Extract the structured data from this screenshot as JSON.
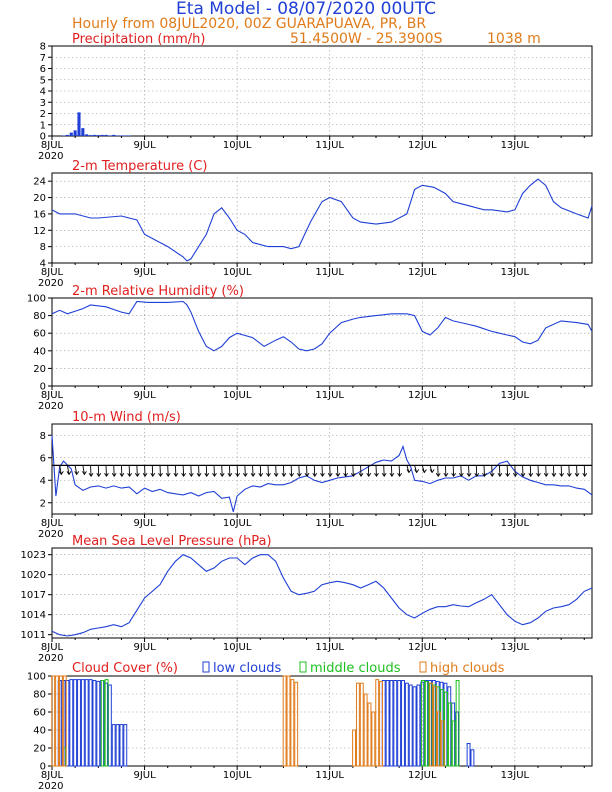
{
  "header": {
    "title": "Eta Model - 08/07/2020 00UTC",
    "line2": "Hourly from 08JUL2020, 00Z  GUARAPUAVA, PR, BR",
    "coords": "51.4500W - 25.3900S",
    "elevation": "1038  m"
  },
  "colors": {
    "title": "#1f3fd6",
    "subtitle": "#e07b1a",
    "panel_title": "#e02020",
    "line": "#1f3fd6",
    "arrows": "#000000",
    "low_clouds": "#1f3fd6",
    "middle_clouds": "#1fbf1f",
    "high_clouds": "#e07b1a",
    "grid": "#9a9a9a"
  },
  "x_axis": {
    "tick_labels": [
      "8JUL",
      "9JUL",
      "10JUL",
      "11JUL",
      "12JUL",
      "13JUL"
    ],
    "year_label": "2020"
  },
  "chart_data": [
    {
      "type": "bar",
      "title": "Precipitation (mm/h)",
      "x_unit": "hours from 08JUL2020 00Z",
      "ylim": [
        0,
        8
      ],
      "yticks": [
        0,
        1,
        2,
        3,
        4,
        5,
        6,
        7,
        8
      ],
      "x": [
        3,
        4,
        5,
        6,
        7,
        8,
        9,
        10,
        11,
        12,
        13,
        14,
        15,
        16,
        17,
        18,
        19,
        20
      ],
      "values": [
        0.05,
        0.1,
        0.3,
        0.5,
        2.1,
        0.7,
        0.15,
        0.08,
        0.1,
        0.08,
        0.1,
        0.1,
        0.05,
        0.1,
        0.05,
        0.05,
        0.05,
        0.05
      ]
    },
    {
      "type": "line",
      "title": "2-m Temperature (C)",
      "x_unit": "hours from 08JUL2020 00Z",
      "ylim": [
        4,
        26
      ],
      "yticks": [
        4,
        8,
        12,
        16,
        20,
        24
      ],
      "x": [
        0,
        2,
        6,
        10,
        12,
        18,
        20,
        22,
        24,
        30,
        34,
        35,
        36,
        40,
        42,
        44,
        46,
        48,
        50,
        52,
        56,
        60,
        62,
        64,
        67,
        70,
        72,
        75,
        78,
        80,
        84,
        88,
        92,
        94,
        96,
        99,
        102,
        104,
        106,
        108,
        112,
        114,
        118,
        120,
        122,
        124,
        126,
        128,
        130,
        132,
        136,
        139,
        140
      ],
      "values": [
        17,
        16,
        16,
        15,
        15,
        15.5,
        15,
        14.5,
        11,
        8,
        5.5,
        4.5,
        5,
        11,
        16,
        17.5,
        15,
        12,
        11,
        9,
        8,
        8,
        7.5,
        8,
        14,
        19,
        20,
        19,
        15,
        14,
        13.5,
        14,
        16,
        22,
        23,
        22.5,
        21,
        19,
        18.5,
        18,
        17,
        17,
        16.5,
        17,
        21,
        23,
        24.5,
        23,
        19,
        17.5,
        16,
        15,
        18
      ]
    },
    {
      "type": "line",
      "title": "2-m Relative Humidity (%)",
      "x_unit": "hours from 08JUL2020 00Z",
      "ylim": [
        0,
        100
      ],
      "yticks": [
        0,
        20,
        40,
        60,
        80,
        100
      ],
      "x": [
        0,
        2,
        4,
        8,
        10,
        14,
        18,
        20,
        22,
        25,
        30,
        34,
        35,
        36,
        38,
        40,
        42,
        44,
        46,
        48,
        52,
        55,
        58,
        60,
        62,
        64,
        66,
        68,
        70,
        72,
        75,
        78,
        80,
        84,
        88,
        92,
        94,
        96,
        98,
        100,
        102,
        104,
        106,
        108,
        110,
        112,
        114,
        116,
        118,
        120,
        122,
        124,
        126,
        128,
        132,
        136,
        139,
        140
      ],
      "values": [
        82,
        86,
        82,
        88,
        92,
        90,
        84,
        82,
        96,
        95,
        95,
        96,
        92,
        84,
        62,
        45,
        40,
        45,
        55,
        60,
        55,
        45,
        52,
        56,
        50,
        42,
        40,
        42,
        48,
        60,
        72,
        76,
        78,
        80,
        82,
        82,
        80,
        62,
        58,
        66,
        78,
        74,
        72,
        70,
        68,
        65,
        62,
        60,
        58,
        56,
        50,
        48,
        52,
        66,
        74,
        72,
        70,
        62
      ]
    },
    {
      "type": "line",
      "title": "10-m Wind (m/s)",
      "x_unit": "hours from 08JUL2020 00Z",
      "ylim": [
        1,
        9
      ],
      "yticks": [
        2,
        4,
        6,
        8
      ],
      "x": [
        0,
        1,
        2,
        3,
        5,
        6,
        8,
        10,
        12,
        14,
        16,
        18,
        20,
        22,
        24,
        26,
        28,
        30,
        32,
        34,
        36,
        38,
        40,
        42,
        44,
        46,
        47,
        48,
        50,
        52,
        54,
        56,
        58,
        60,
        62,
        64,
        66,
        68,
        70,
        72,
        74,
        76,
        78,
        80,
        82,
        84,
        86,
        88,
        90,
        91,
        92,
        93,
        94,
        96,
        98,
        100,
        102,
        104,
        106,
        108,
        110,
        112,
        114,
        116,
        118,
        120,
        122,
        124,
        126,
        128,
        130,
        132,
        134,
        136,
        138,
        140
      ],
      "values": [
        8,
        2.6,
        5.2,
        5.7,
        5,
        3.6,
        3.1,
        3.4,
        3.5,
        3.3,
        3.5,
        3.3,
        3.4,
        2.8,
        3.3,
        3.0,
        3.2,
        2.9,
        2.8,
        2.7,
        2.9,
        2.6,
        2.9,
        3.0,
        2.4,
        2.5,
        1.2,
        2.6,
        3.2,
        3.5,
        3.4,
        3.7,
        3.6,
        3.6,
        3.8,
        4.2,
        4.4,
        4.0,
        3.8,
        4.0,
        4.2,
        4.3,
        4.4,
        4.8,
        5.2,
        5.6,
        5.8,
        5.7,
        6.2,
        7.0,
        5.8,
        5.2,
        4.0,
        3.9,
        3.7,
        4.0,
        4.2,
        4.2,
        4.4,
        4.0,
        4.4,
        4.4,
        4.8,
        5.5,
        5.7,
        4.8,
        4.3,
        4.0,
        3.8,
        3.6,
        3.6,
        3.5,
        3.5,
        3.3,
        3.2,
        2.7
      ]
    },
    {
      "type": "line",
      "title": "Mean Sea Level Pressure (hPa)",
      "x_unit": "hours from 08JUL2020 00Z",
      "ylim": [
        1010.5,
        1024
      ],
      "yticks": [
        1011,
        1014,
        1017,
        1020,
        1023
      ],
      "x": [
        0,
        2,
        4,
        6,
        8,
        10,
        12,
        14,
        16,
        18,
        20,
        24,
        28,
        30,
        32,
        34,
        36,
        38,
        40,
        42,
        44,
        46,
        48,
        50,
        52,
        54,
        56,
        58,
        60,
        62,
        64,
        66,
        68,
        70,
        72,
        74,
        76,
        78,
        80,
        82,
        84,
        86,
        88,
        90,
        92,
        94,
        96,
        98,
        100,
        102,
        104,
        106,
        108,
        110,
        112,
        114,
        116,
        118,
        120,
        122,
        124,
        126,
        128,
        130,
        132,
        134,
        136,
        138,
        140
      ],
      "values": [
        1011.5,
        1011,
        1010.8,
        1011,
        1011.3,
        1011.8,
        1012,
        1012.2,
        1012.5,
        1012.2,
        1012.8,
        1016.5,
        1018.5,
        1020.5,
        1022,
        1023,
        1022.5,
        1021.5,
        1020.5,
        1021,
        1022,
        1022.5,
        1022.5,
        1021.5,
        1022.5,
        1023,
        1023,
        1022,
        1019.5,
        1017.5,
        1017,
        1017.2,
        1017.5,
        1018.5,
        1018.8,
        1019,
        1018.8,
        1018.5,
        1018,
        1018.5,
        1019,
        1018,
        1016.5,
        1015,
        1014,
        1013.5,
        1014.2,
        1014.8,
        1015.2,
        1015.2,
        1015.5,
        1015.3,
        1015.2,
        1015.8,
        1016.3,
        1017,
        1015.5,
        1014,
        1013,
        1012.5,
        1012.8,
        1013.5,
        1014.5,
        1015,
        1015.2,
        1015.5,
        1016.3,
        1017.5,
        1018
      ]
    },
    {
      "type": "bar",
      "title": "Cloud Cover (%)",
      "x_unit": "hours from 08JUL2020 00Z",
      "ylim": [
        0,
        100
      ],
      "yticks": [
        0,
        20,
        40,
        60,
        80,
        100
      ],
      "legend": [
        "low clouds",
        "middle clouds",
        "high clouds"
      ],
      "series": [
        {
          "name": "low clouds",
          "x": [
            2,
            3,
            4,
            5,
            6,
            7,
            8,
            9,
            10,
            11,
            12,
            13,
            14,
            15,
            16,
            17,
            18,
            19,
            86,
            87,
            88,
            89,
            90,
            91,
            92,
            93,
            94,
            95,
            96,
            97,
            98,
            99,
            100,
            101,
            102,
            103,
            104,
            105,
            108,
            109
          ],
          "values": [
            95,
            95,
            95,
            96,
            96,
            96,
            96,
            96,
            96,
            95,
            94,
            95,
            92,
            90,
            46,
            46,
            46,
            46,
            95,
            95,
            95,
            95,
            95,
            95,
            92,
            90,
            88,
            90,
            93,
            95,
            95,
            95,
            94,
            93,
            92,
            88,
            70,
            60,
            25,
            18
          ]
        },
        {
          "name": "middle clouds",
          "x": [
            3,
            13,
            14,
            96,
            97,
            98,
            99,
            100,
            101,
            102,
            103,
            104,
            105
          ],
          "values": [
            20,
            95,
            96,
            95,
            94,
            92,
            90,
            88,
            85,
            82,
            70,
            50,
            95
          ]
        },
        {
          "name": "high clouds",
          "x": [
            0,
            1,
            2,
            3,
            60,
            61,
            62,
            63,
            78,
            79,
            80,
            81,
            82,
            83,
            84,
            85,
            98,
            99,
            100,
            101
          ],
          "values": [
            100,
            100,
            100,
            100,
            100,
            100,
            96,
            93,
            40,
            92,
            92,
            80,
            70,
            60,
            96,
            94,
            92,
            88,
            60,
            50
          ]
        }
      ]
    }
  ]
}
